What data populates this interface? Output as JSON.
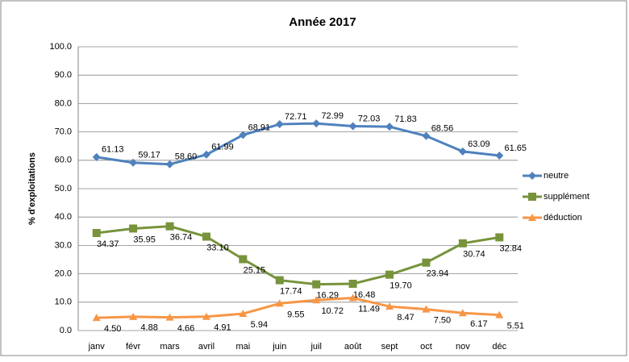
{
  "chart_data": {
    "type": "line",
    "title": "Année 2017",
    "y_label": "% d'exploitations",
    "categories": [
      "janv",
      "févr",
      "mars",
      "avril",
      "mai",
      "juin",
      "juil",
      "août",
      "sept",
      "oct",
      "nov",
      "déc"
    ],
    "series": [
      {
        "name": "neutre",
        "color": "#4f81bd",
        "marker": "diamond",
        "values": [
          61.13,
          59.17,
          58.6,
          61.99,
          68.91,
          72.71,
          72.99,
          72.03,
          71.83,
          68.56,
          63.09,
          61.65
        ],
        "value_labels": [
          "61.13",
          "59.17",
          "58.60",
          "61.99",
          "68.91",
          "72.71",
          "72.99",
          "72.03",
          "71.83",
          "68.56",
          "63.09",
          "61.65"
        ]
      },
      {
        "name": "supplément",
        "color": "#77933c",
        "marker": "square",
        "values": [
          34.37,
          35.95,
          36.74,
          33.1,
          25.15,
          17.74,
          16.29,
          16.48,
          19.7,
          23.94,
          30.74,
          32.84
        ],
        "value_labels": [
          "34.37",
          "35.95",
          "36.74",
          "33.10",
          "25.15",
          "17.74",
          "16.29",
          "16.48",
          "19.70",
          "23.94",
          "30.74",
          "32.84"
        ]
      },
      {
        "name": "déduction",
        "color": "#f79646",
        "marker": "triangle",
        "values": [
          4.5,
          4.88,
          4.66,
          4.91,
          5.94,
          9.55,
          10.72,
          11.49,
          8.47,
          7.5,
          6.17,
          5.51
        ],
        "value_labels": [
          "4.50",
          "4.88",
          "4.66",
          "4.91",
          "5.94",
          "9.55",
          "10.72",
          "11.49",
          "8.47",
          "7.50",
          "6.17",
          "5.51"
        ]
      }
    ],
    "ylim": [
      0,
      100
    ],
    "yticks": [
      {
        "value": 0,
        "label": "0.0"
      },
      {
        "value": 10,
        "label": "10.0"
      },
      {
        "value": 20,
        "label": "20.0"
      },
      {
        "value": 30,
        "label": "30.0"
      },
      {
        "value": 40,
        "label": "40.0"
      },
      {
        "value": 50,
        "label": "50.0"
      },
      {
        "value": 60,
        "label": "60.0"
      },
      {
        "value": 70,
        "label": "70.0"
      },
      {
        "value": 80,
        "label": "80.0"
      },
      {
        "value": 90,
        "label": "90.0"
      },
      {
        "value": 100,
        "label": "100.0"
      }
    ],
    "grid": true,
    "legend": "right"
  }
}
